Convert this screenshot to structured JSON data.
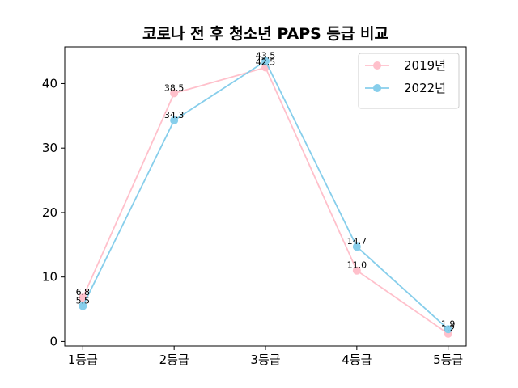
{
  "chart_data": {
    "type": "line",
    "title": "코로나 전 후 청소년 PAPS 등급 비교",
    "xlabel": "",
    "ylabel": "",
    "categories": [
      "1등급",
      "2등급",
      "3등급",
      "4등급",
      "5등급"
    ],
    "ylim": [
      -0.7,
      45.7
    ],
    "yticks": [
      0,
      10,
      20,
      30,
      40
    ],
    "grid": false,
    "legend_position": "top-right",
    "series": [
      {
        "name": "2019년",
        "color": "#ffc0cb",
        "values": [
          6.8,
          38.5,
          42.5,
          11.0,
          1.2
        ],
        "labels": [
          "6.8",
          "38.5",
          "42.5",
          "11.0",
          "1.2"
        ]
      },
      {
        "name": "2022년",
        "color": "#87ceeb",
        "values": [
          5.5,
          34.3,
          43.5,
          14.7,
          1.9
        ],
        "labels": [
          "5.5",
          "34.3",
          "43.5",
          "14.7",
          "1.9"
        ]
      }
    ]
  }
}
